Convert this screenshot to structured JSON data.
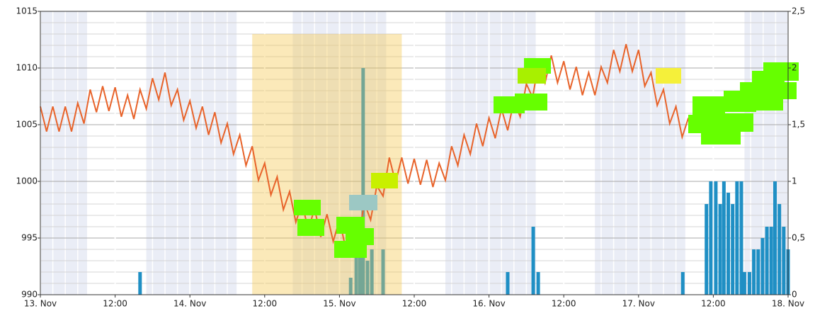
{
  "chart_data": {
    "type": "line",
    "xlim": [
      0,
      120
    ],
    "xticks": [
      {
        "value": 0,
        "label": "13. Nov"
      },
      {
        "value": 12,
        "label": "12:00"
      },
      {
        "value": 24,
        "label": "14. Nov"
      },
      {
        "value": 36,
        "label": "12:00"
      },
      {
        "value": 48,
        "label": "15. Nov"
      },
      {
        "value": 60,
        "label": "12:00"
      },
      {
        "value": 72,
        "label": "16. Nov"
      },
      {
        "value": 84,
        "label": "12:00"
      },
      {
        "value": 96,
        "label": "17. Nov"
      },
      {
        "value": 108,
        "label": "12:00"
      },
      {
        "value": 120,
        "label": "18. Nov"
      }
    ],
    "ylim": [
      990,
      1015
    ],
    "yticks": [
      990,
      995,
      1000,
      1005,
      1010,
      1015
    ],
    "y2lim": [
      0,
      2.5
    ],
    "y2ticks": [
      0,
      {
        "value": 0.5,
        "label": "0,5"
      },
      1,
      {
        "value": 1.5,
        "label": "1,5"
      },
      2,
      {
        "value": 2.5,
        "label": "2,5"
      }
    ],
    "grid": true,
    "minor_grid": {
      "x_step": 2,
      "y_step": 1
    },
    "shaded_ranges": [
      [
        0,
        7.5
      ],
      [
        17,
        31.5
      ],
      [
        40.5,
        55.5
      ],
      [
        65,
        79.5
      ],
      [
        89,
        103.5
      ],
      [
        113,
        120
      ]
    ],
    "highlight": {
      "x": [
        34,
        58
      ],
      "y": 1013
    },
    "series": [
      {
        "color": "#e8632a",
        "x": [
          0,
          1,
          2,
          3,
          4,
          5,
          6,
          7,
          8,
          9,
          10,
          11,
          12,
          13,
          14,
          15,
          16,
          17,
          18,
          19,
          20,
          21,
          22,
          23,
          24,
          25,
          26,
          27,
          28,
          29,
          30,
          31,
          32,
          33,
          34,
          35,
          36,
          37,
          38,
          39,
          40,
          41,
          42,
          43,
          44,
          45,
          46,
          47,
          48,
          49,
          50,
          51,
          52,
          53,
          54,
          55,
          56,
          57,
          58,
          59,
          60,
          61,
          62,
          63,
          64,
          65,
          66,
          67,
          68,
          69,
          70,
          71,
          72,
          73,
          74,
          75,
          76,
          77,
          78,
          79,
          80,
          81,
          82,
          83,
          84,
          85,
          86,
          87,
          88,
          89,
          90,
          91,
          92,
          93,
          94,
          95,
          96,
          97,
          98,
          99,
          100,
          101,
          102,
          103,
          104
        ],
        "values": [
          1006.6,
          1004.4,
          1006.6,
          1004.4,
          1006.6,
          1004.4,
          1006.9,
          1005.1,
          1008.1,
          1006.1,
          1008.4,
          1006.2,
          1008.3,
          1005.7,
          1007.6,
          1005.5,
          1008.1,
          1006.4,
          1009.1,
          1007.2,
          1009.6,
          1006.7,
          1008.1,
          1005.4,
          1007.1,
          1004.7,
          1006.6,
          1004.1,
          1006.1,
          1003.4,
          1005.1,
          1002.4,
          1004.1,
          1001.4,
          1003.1,
          1000.1,
          1001.6,
          998.8,
          1000.4,
          997.5,
          999.1,
          996.4,
          998.1,
          995.7,
          997.6,
          995.1,
          997.1,
          994.7,
          996.6,
          994.1,
          996.1,
          994.9,
          998.1,
          996.6,
          999.6,
          998.7,
          1002.1,
          999.9,
          1002.1,
          999.8,
          1002,
          999.7,
          1001.9,
          999.5,
          1001.6,
          1000.1,
          1003.1,
          1001.4,
          1004.1,
          1002.4,
          1005.1,
          1003.1,
          1005.6,
          1003.8,
          1006.4,
          1004.5,
          1007.1,
          1005.7,
          1008.6,
          1007.4,
          1010.6,
          1008.7,
          1011.1,
          1008.7,
          1010.6,
          1008.1,
          1010.1,
          1007.6,
          1009.6,
          1007.6,
          1010.1,
          1008.7,
          1011.6,
          1009.7,
          1012.1,
          1009.7,
          1011.6,
          1008.4,
          1009.6,
          1006.7,
          1008.1,
          1005.1,
          1006.6,
          1003.9,
          1005.6
        ]
      },
      {
        "type": "bar",
        "axis": "y2",
        "color": "#1f8fc4",
        "x": [
          16,
          49.8,
          50.7,
          51.3,
          51.8,
          52.5,
          53.2,
          55,
          75,
          79.1,
          79.9,
          103.1,
          106.9,
          107.6,
          108.4,
          109.1,
          109.7,
          110.4,
          111.1,
          111.8,
          112.5,
          113,
          113.8,
          114.5,
          115.2,
          115.9,
          116.6,
          117.3,
          117.9,
          118.6,
          119.3,
          120
        ],
        "values": [
          0.2,
          0.15,
          0.5,
          0.6,
          2,
          0.3,
          0.4,
          0.4,
          0.2,
          0.6,
          0.2,
          0.2,
          0.8,
          1,
          1,
          0.8,
          1,
          0.9,
          0.8,
          1,
          1,
          0.2,
          0.2,
          0.4,
          0.4,
          0.5,
          0.6,
          0.6,
          1,
          0.8,
          0.6,
          0.4
        ]
      }
    ]
  }
}
